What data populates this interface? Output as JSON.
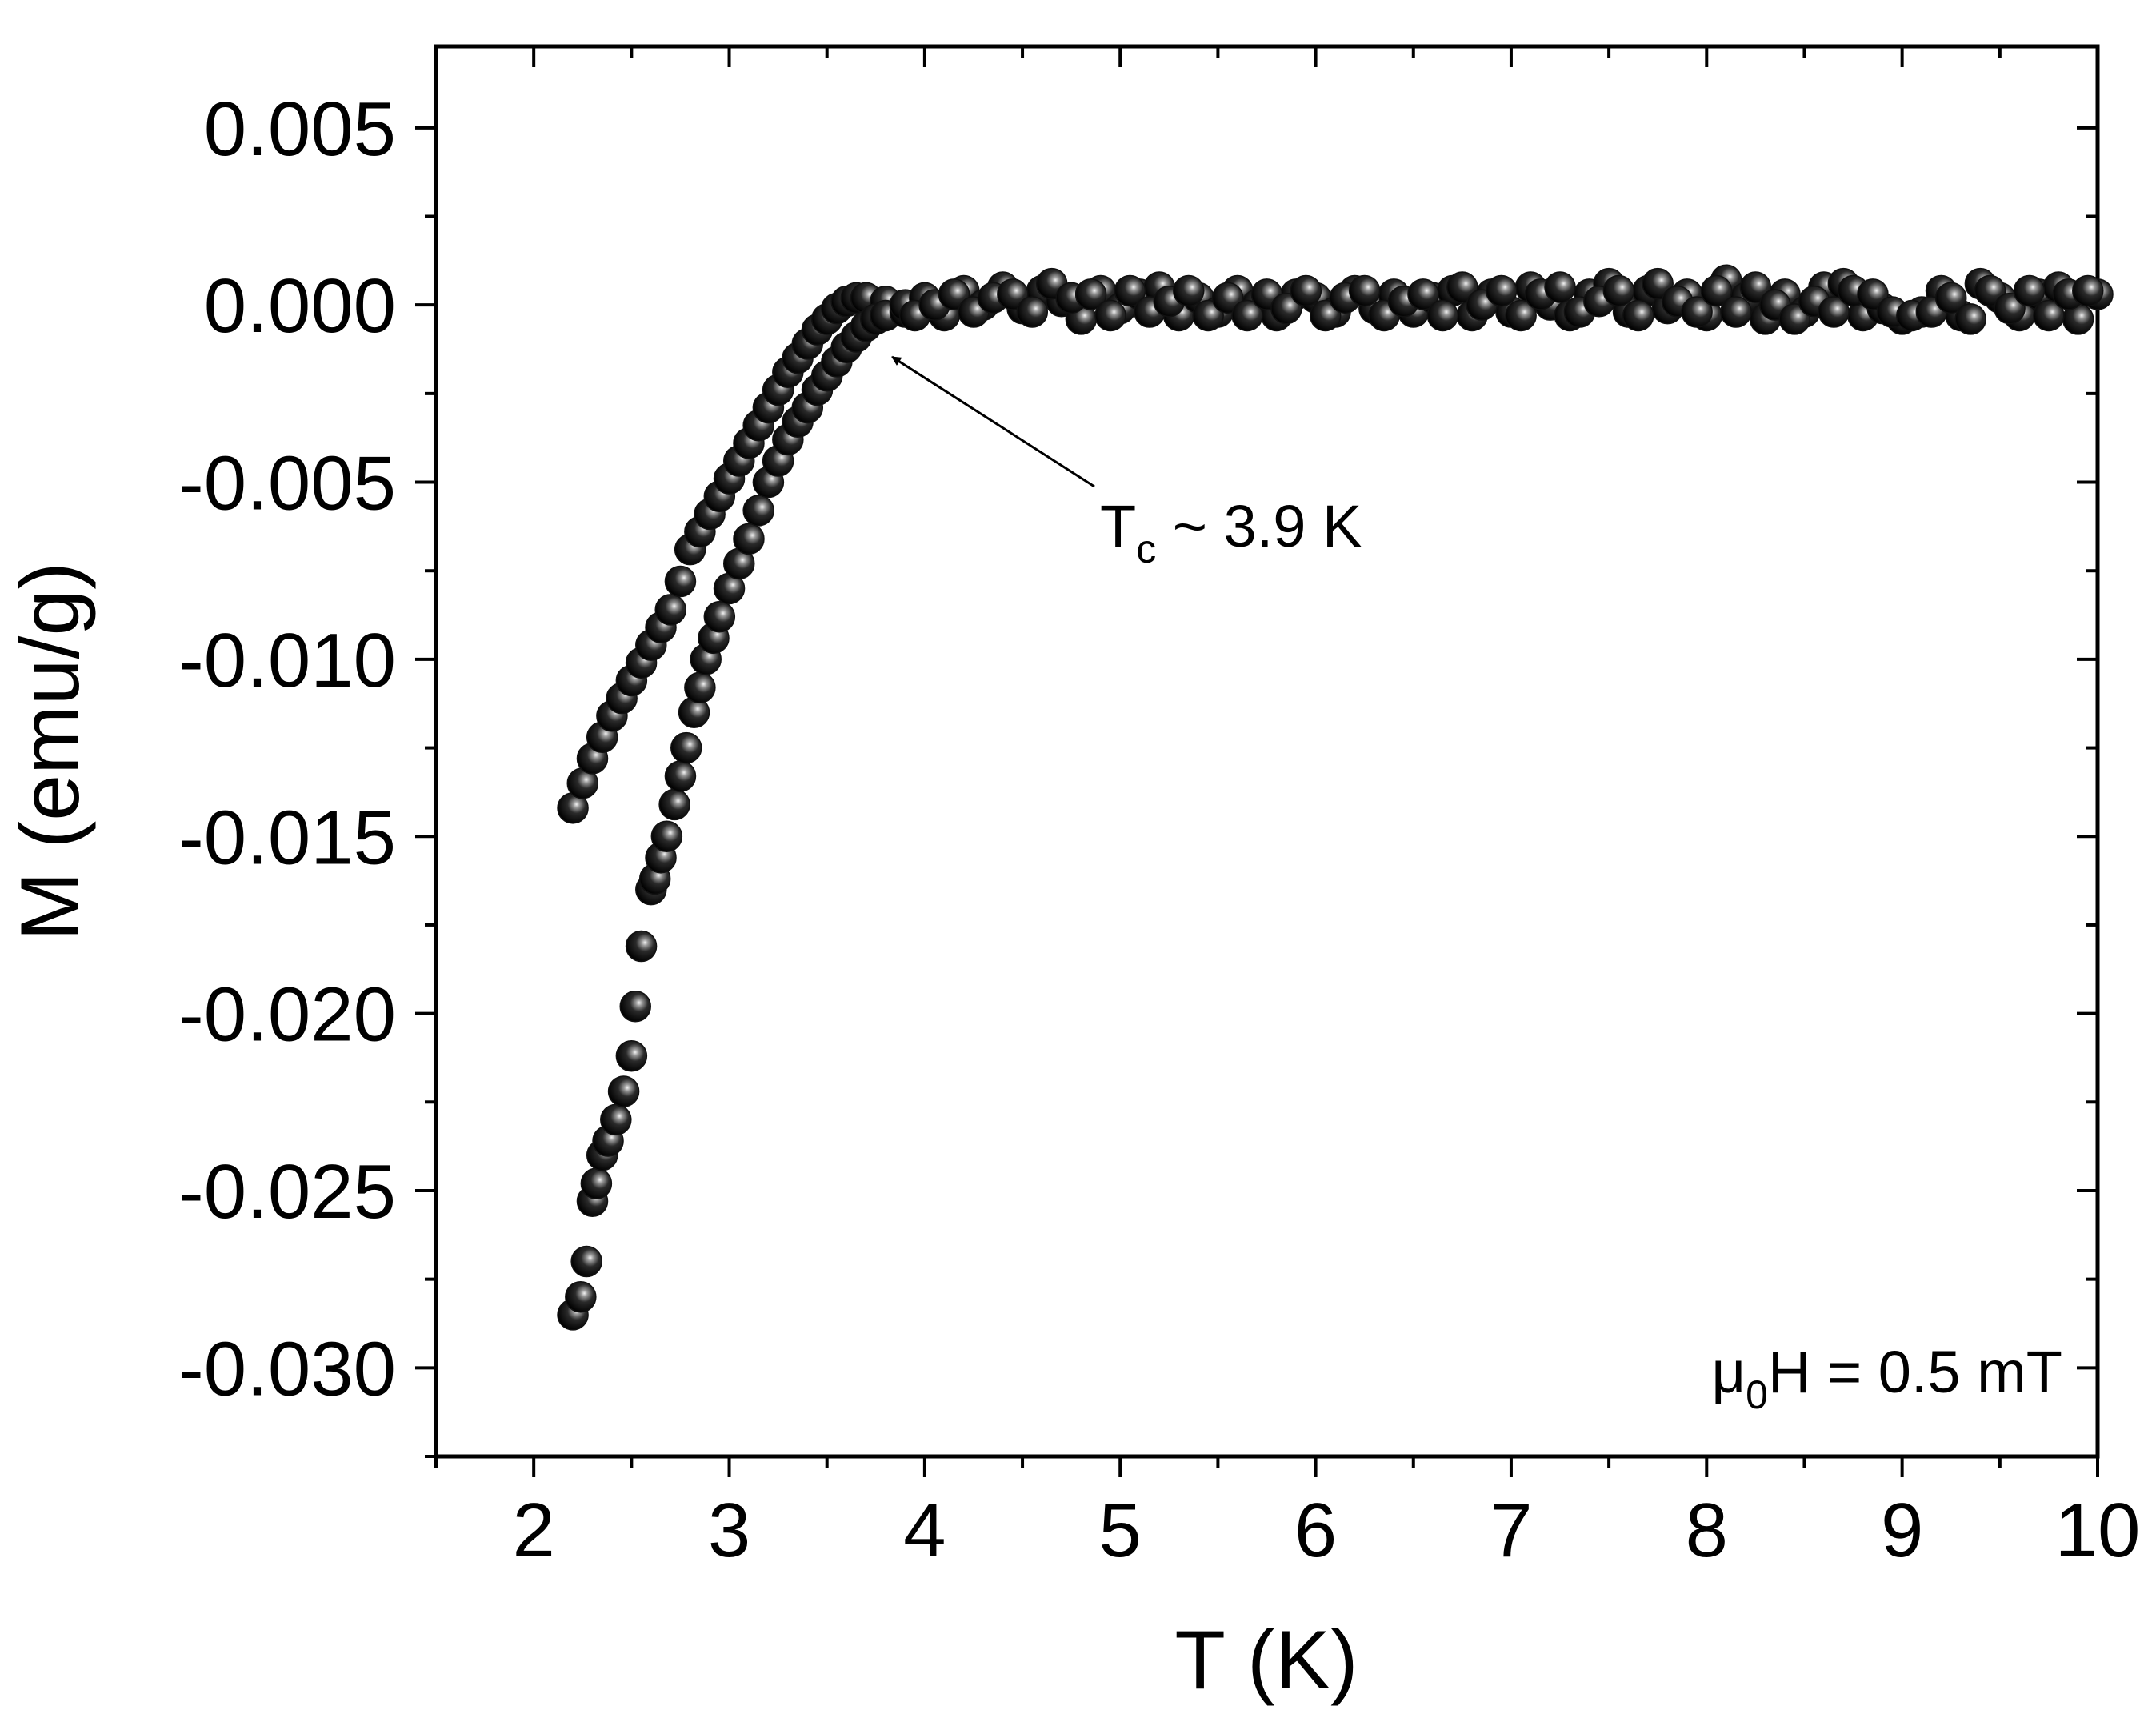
{
  "chart_data": {
    "type": "scatter",
    "xlabel": "T (K)",
    "ylabel": "M (emu/g)",
    "xlim": [
      1.5,
      10
    ],
    "ylim": [
      -0.0325,
      0.0073
    ],
    "x_ticks": [
      2,
      3,
      4,
      5,
      6,
      7,
      8,
      9,
      10
    ],
    "x_tick_labels": [
      "2",
      "3",
      "4",
      "5",
      "6",
      "7",
      "8",
      "9",
      "10"
    ],
    "y_ticks": [
      0.005,
      0,
      -0.005,
      -0.01,
      -0.015,
      -0.02,
      -0.025,
      -0.03
    ],
    "y_tick_labels": [
      "0.005",
      "0.000",
      "-0.005",
      "-0.010",
      "-0.015",
      "-0.020",
      "-0.025",
      "-0.030"
    ],
    "grid": false,
    "marker_color": "#111111",
    "series": [
      {
        "points": [
          [
            2.2,
            -0.0142
          ],
          [
            2.25,
            -0.0135
          ],
          [
            2.3,
            -0.0128
          ],
          [
            2.35,
            -0.0122
          ],
          [
            2.4,
            -0.0116
          ],
          [
            2.45,
            -0.0111
          ],
          [
            2.5,
            -0.0106
          ],
          [
            2.55,
            -0.0101
          ],
          [
            2.6,
            -0.0096
          ],
          [
            2.65,
            -0.0091
          ],
          [
            2.7,
            -0.0086
          ],
          [
            2.75,
            -0.0078
          ],
          [
            2.8,
            -0.0069
          ],
          [
            2.85,
            -0.0064
          ],
          [
            2.9,
            -0.0059
          ],
          [
            2.95,
            -0.0054
          ],
          [
            3.0,
            -0.0049
          ],
          [
            3.05,
            -0.0044
          ],
          [
            3.1,
            -0.0039
          ],
          [
            3.15,
            -0.0034
          ],
          [
            3.2,
            -0.0029
          ],
          [
            3.25,
            -0.0024
          ],
          [
            3.3,
            -0.0019
          ],
          [
            3.35,
            -0.0015
          ],
          [
            3.4,
            -0.0011
          ],
          [
            3.45,
            -0.0007
          ],
          [
            3.5,
            -0.0004
          ],
          [
            3.55,
            -0.0001
          ],
          [
            3.6,
            0.0001
          ],
          [
            3.65,
            0.0002
          ],
          [
            3.7,
            0.0002
          ],
          [
            3.8,
            0.0001
          ]
        ]
      },
      {
        "points": [
          [
            2.2,
            -0.0285
          ],
          [
            2.24,
            -0.028
          ],
          [
            2.27,
            -0.027
          ],
          [
            2.3,
            -0.0253
          ],
          [
            2.32,
            -0.0248
          ],
          [
            2.35,
            -0.024
          ],
          [
            2.38,
            -0.0236
          ],
          [
            2.42,
            -0.023
          ],
          [
            2.46,
            -0.0222
          ],
          [
            2.5,
            -0.0212
          ],
          [
            2.52,
            -0.0198
          ],
          [
            2.55,
            -0.0181
          ],
          [
            2.6,
            -0.0165
          ],
          [
            2.62,
            -0.0162
          ],
          [
            2.65,
            -0.0156
          ],
          [
            2.68,
            -0.015
          ],
          [
            2.72,
            -0.0141
          ],
          [
            2.75,
            -0.0133
          ],
          [
            2.78,
            -0.0125
          ],
          [
            2.82,
            -0.0115
          ],
          [
            2.85,
            -0.0108
          ],
          [
            2.88,
            -0.01
          ],
          [
            2.92,
            -0.0094
          ],
          [
            2.95,
            -0.0088
          ],
          [
            3.0,
            -0.008
          ],
          [
            3.05,
            -0.0073
          ],
          [
            3.1,
            -0.0066
          ],
          [
            3.15,
            -0.0058
          ],
          [
            3.2,
            -0.005
          ],
          [
            3.25,
            -0.0044
          ],
          [
            3.3,
            -0.0038
          ],
          [
            3.35,
            -0.0033
          ],
          [
            3.4,
            -0.0029
          ],
          [
            3.45,
            -0.0024
          ],
          [
            3.5,
            -0.002
          ],
          [
            3.55,
            -0.0016
          ],
          [
            3.6,
            -0.0012
          ],
          [
            3.65,
            -0.0009
          ],
          [
            3.7,
            -0.0006
          ],
          [
            3.75,
            -0.0004
          ],
          [
            3.8,
            -0.0003
          ],
          [
            3.9,
            -0.0002
          ]
        ]
      },
      {
        "points": [
          [
            3.9,
            0.0
          ],
          [
            4.0,
            0.0002
          ],
          [
            4.1,
            -0.0003
          ],
          [
            4.2,
            0.0004
          ],
          [
            4.3,
            0.0
          ],
          [
            4.4,
            0.0005
          ],
          [
            4.5,
            -0.0001
          ],
          [
            4.6,
            0.0004
          ],
          [
            4.7,
            0.0001
          ],
          [
            4.8,
            -0.0004
          ],
          [
            4.9,
            0.0004
          ],
          [
            5.0,
            -0.0001
          ],
          [
            5.1,
            0.0003
          ],
          [
            5.2,
            0.0005
          ],
          [
            5.3,
            -0.0003
          ],
          [
            5.4,
            0.0002
          ],
          [
            5.5,
            -0.0002
          ],
          [
            5.6,
            0.0004
          ],
          [
            5.7,
            0.0
          ],
          [
            5.8,
            -0.0003
          ],
          [
            5.9,
            0.0003
          ],
          [
            6.0,
            0.0002
          ],
          [
            6.1,
            -0.0002
          ],
          [
            6.2,
            0.0004
          ],
          [
            6.3,
            -0.0001
          ],
          [
            6.4,
            0.0003
          ],
          [
            6.5,
            -0.0002
          ],
          [
            6.6,
            0.0002
          ],
          [
            6.7,
            0.0004
          ],
          [
            6.8,
            -0.0003
          ],
          [
            6.9,
            0.0003
          ],
          [
            7.0,
            -0.0002
          ],
          [
            7.1,
            0.0005
          ],
          [
            7.2,
            0.0
          ],
          [
            7.3,
            -0.0003
          ],
          [
            7.4,
            0.0003
          ],
          [
            7.5,
            0.0006
          ],
          [
            7.6,
            -0.0002
          ],
          [
            7.7,
            0.0004
          ],
          [
            7.8,
            -0.0001
          ],
          [
            7.9,
            0.0003
          ],
          [
            8.0,
            -0.0003
          ],
          [
            8.1,
            0.0007
          ],
          [
            8.2,
            0.0002
          ],
          [
            8.3,
            -0.0004
          ],
          [
            8.4,
            0.0003
          ],
          [
            8.5,
            -0.0002
          ],
          [
            8.6,
            0.0005
          ],
          [
            8.7,
            0.0006
          ],
          [
            8.8,
            -0.0003
          ],
          [
            8.9,
            -0.0001
          ],
          [
            9.0,
            -0.0004
          ],
          [
            9.1,
            -0.0002
          ],
          [
            9.2,
            0.0004
          ],
          [
            9.3,
            -0.0003
          ],
          [
            9.4,
            0.0006
          ],
          [
            9.5,
            0.0002
          ],
          [
            9.6,
            -0.0003
          ],
          [
            9.7,
            0.0003
          ],
          [
            9.8,
            0.0005
          ],
          [
            9.9,
            -0.0004
          ],
          [
            10.0,
            0.0003
          ],
          [
            3.95,
            -0.0003
          ],
          [
            4.05,
            0.0
          ],
          [
            4.15,
            0.0003
          ],
          [
            4.25,
            -0.0002
          ],
          [
            4.35,
            0.0002
          ],
          [
            4.45,
            0.0003
          ],
          [
            4.55,
            -0.0002
          ],
          [
            4.65,
            0.0006
          ],
          [
            4.75,
            0.0002
          ],
          [
            4.85,
            0.0003
          ],
          [
            4.95,
            -0.0003
          ],
          [
            5.05,
            0.0004
          ],
          [
            5.15,
            -0.0002
          ],
          [
            5.25,
            0.0001
          ],
          [
            5.35,
            0.0004
          ],
          [
            5.45,
            -0.0003
          ],
          [
            5.55,
            0.0002
          ],
          [
            5.65,
            -0.0003
          ],
          [
            5.75,
            0.0003
          ],
          [
            5.85,
            -0.0001
          ],
          [
            5.95,
            0.0004
          ],
          [
            6.05,
            -0.0003
          ],
          [
            6.15,
            0.0002
          ],
          [
            6.25,
            0.0004
          ],
          [
            6.35,
            -0.0003
          ],
          [
            6.45,
            0.0001
          ],
          [
            6.55,
            0.0003
          ],
          [
            6.65,
            -0.0003
          ],
          [
            6.75,
            0.0005
          ],
          [
            6.85,
            0.0
          ],
          [
            6.95,
            0.0004
          ],
          [
            7.05,
            -0.0003
          ],
          [
            7.15,
            0.0003
          ],
          [
            7.25,
            0.0005
          ],
          [
            7.35,
            -0.0002
          ],
          [
            7.45,
            0.0001
          ],
          [
            7.55,
            0.0004
          ],
          [
            7.65,
            -0.0003
          ],
          [
            7.75,
            0.0006
          ],
          [
            7.85,
            0.0001
          ],
          [
            7.95,
            -0.0002
          ],
          [
            8.05,
            0.0004
          ],
          [
            8.15,
            -0.0002
          ],
          [
            8.25,
            0.0005
          ],
          [
            8.35,
            0.0
          ],
          [
            8.45,
            -0.0004
          ],
          [
            8.55,
            0.0001
          ],
          [
            8.65,
            -0.0002
          ],
          [
            8.75,
            0.0004
          ],
          [
            8.85,
            0.0003
          ],
          [
            8.95,
            -0.0002
          ],
          [
            9.05,
            -0.0003
          ],
          [
            9.15,
            -0.0002
          ],
          [
            9.25,
            0.0002
          ],
          [
            9.35,
            -0.0004
          ],
          [
            9.45,
            0.0004
          ],
          [
            9.55,
            -0.0001
          ],
          [
            9.65,
            0.0004
          ],
          [
            9.75,
            -0.0003
          ],
          [
            9.85,
            0.0003
          ],
          [
            9.95,
            0.0004
          ]
        ]
      }
    ],
    "annotations": {
      "tc_main": "T",
      "tc_sub": "c",
      "tc_rest": " ~ 3.9 K",
      "field_mu": "μ",
      "field_sub": "0",
      "field_rest": "H = 0.5 mT"
    }
  }
}
